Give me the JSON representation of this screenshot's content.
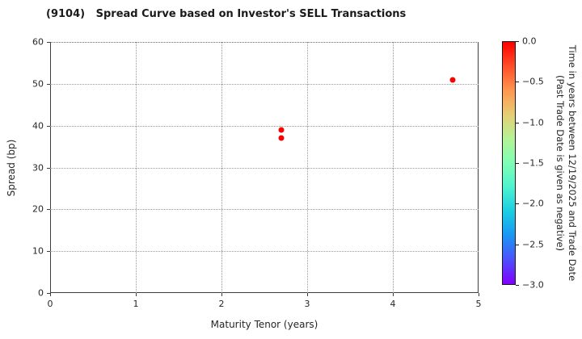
{
  "title": "(9104)   Spread Curve based on Investor's SELL Transactions",
  "colors": {
    "point_red": "#fa0000",
    "axis": "#3d3d3d",
    "grid": "#9a9a9a",
    "background": "#ffffff"
  },
  "chart_data": {
    "type": "scatter",
    "title": "(9104)   Spread Curve based on Investor's SELL Transactions",
    "xlabel": "Maturity Tenor (years)",
    "ylabel": "Spread (bp)",
    "xlim": [
      0,
      5
    ],
    "ylim": [
      0,
      60
    ],
    "xticks": [
      0,
      1,
      2,
      3,
      4,
      5
    ],
    "x_tick_labels": [
      "0",
      "1",
      "2",
      "3",
      "4",
      "5"
    ],
    "yticks": [
      0,
      10,
      20,
      30,
      40,
      50,
      60
    ],
    "y_tick_labels": [
      "0",
      "10",
      "20",
      "30",
      "40",
      "50",
      "60"
    ],
    "grid": "dotted",
    "legend": "none",
    "points": [
      {
        "x": 2.7,
        "y": 39.0,
        "time_value": 0.0,
        "color": "#fa0000"
      },
      {
        "x": 2.7,
        "y": 37.0,
        "time_value": 0.0,
        "color": "#fa0000"
      },
      {
        "x": 4.7,
        "y": 51.0,
        "time_value": 0.0,
        "color": "#fa0000"
      }
    ],
    "colorbar": {
      "label_line1": "Time in years between 12/19/2025 and Trade Date",
      "label_line2": "(Past Trade Date is given as negative)",
      "vmax": 0.0,
      "vmin": -3.0,
      "tick_labels": [
        "0.0",
        "−0.5",
        "−1.0",
        "−1.5",
        "−2.0",
        "−2.5",
        "−3.0"
      ],
      "gradient_top_to_bottom": [
        "#ff0000",
        "#ff4f28",
        "#ff964f",
        "#e6ce74",
        "#b3f396",
        "#80ffb5",
        "#4df3ce",
        "#1acee3",
        "#1a96f3",
        "#4d4ffc",
        "#8000ff"
      ]
    }
  }
}
